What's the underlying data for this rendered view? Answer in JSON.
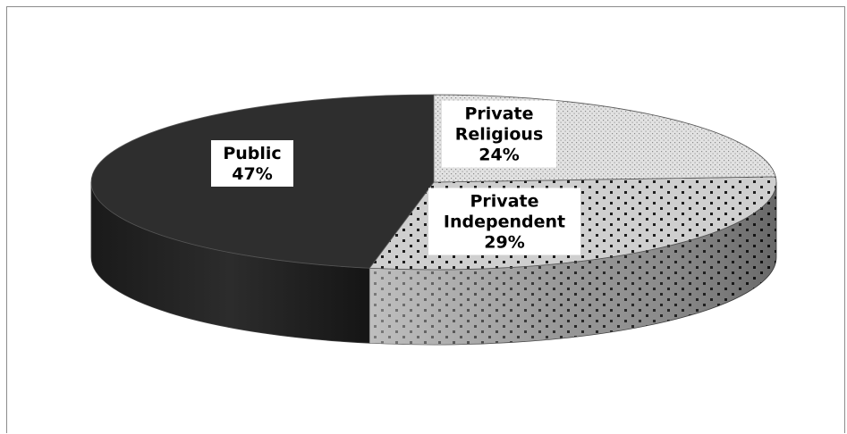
{
  "chart_data": {
    "type": "pie",
    "style": "3d",
    "title": "",
    "slices": [
      {
        "name": "Public",
        "value": 47,
        "percent_label": "47%",
        "color": "#2e2e2e",
        "pattern": "solid"
      },
      {
        "name": "Private Independent",
        "value": 29,
        "percent_label": "29%",
        "color": "#c8c8c8",
        "pattern": "large-dots"
      },
      {
        "name": "Private Religious",
        "value": 24,
        "percent_label": "24%",
        "color": "#dcdcdc",
        "pattern": "fine-dots"
      }
    ],
    "labels": [
      {
        "lines": [
          "Public",
          "47%"
        ]
      },
      {
        "lines": [
          "Private",
          "Independent",
          "29%"
        ]
      },
      {
        "lines": [
          "Private",
          "Religious",
          "24%"
        ]
      }
    ],
    "legend": "none",
    "grid": false
  }
}
